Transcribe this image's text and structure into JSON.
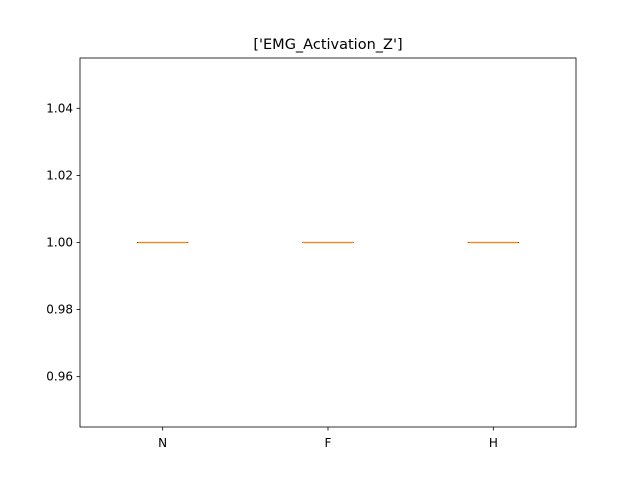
{
  "chart_data": {
    "type": "box",
    "title": "['EMG_Activation_Z']",
    "xlabel": "",
    "ylabel": "",
    "categories": [
      "N",
      "F",
      "H"
    ],
    "boxes": [
      {
        "category": "N",
        "whislo": 1.0,
        "q1": 1.0,
        "med": 1.0,
        "q3": 1.0,
        "whishi": 1.0
      },
      {
        "category": "F",
        "whislo": 1.0,
        "q1": 1.0,
        "med": 1.0,
        "q3": 1.0,
        "whishi": 1.0
      },
      {
        "category": "H",
        "whislo": 1.0,
        "q1": 1.0,
        "med": 1.0,
        "q3": 1.0,
        "whishi": 1.0
      }
    ],
    "ylim": [
      0.945,
      1.055
    ],
    "yticks": [
      0.96,
      0.98,
      1.0,
      1.02,
      1.04
    ],
    "ytick_labels": [
      "0.96",
      "0.98",
      "1.00",
      "1.02",
      "1.04"
    ],
    "grid": false,
    "colors": {
      "box": "#000000",
      "median": "#ff7f0e",
      "axes": "#000000"
    }
  }
}
